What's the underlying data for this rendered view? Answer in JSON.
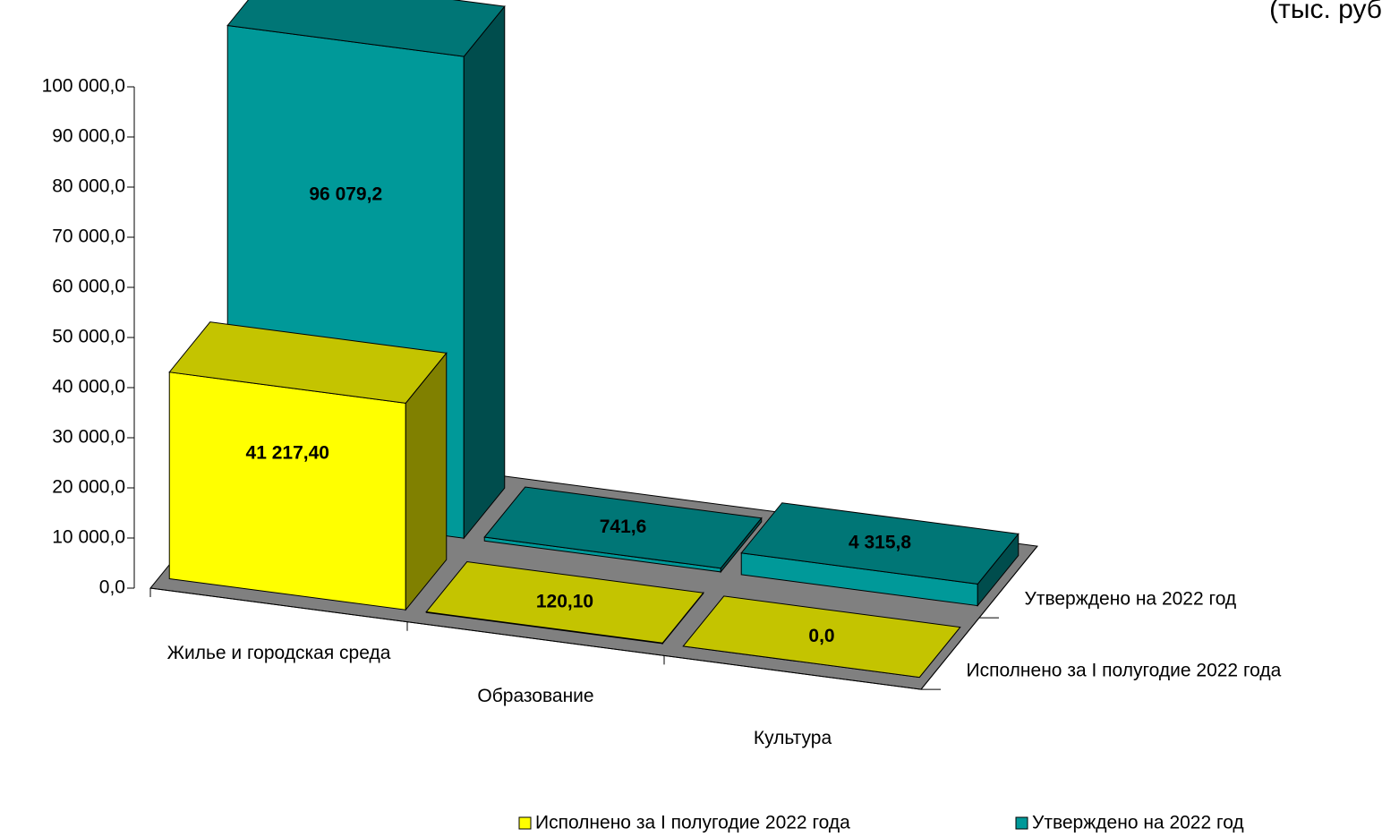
{
  "chart_data": {
    "type": "bar3d",
    "unit_label": "(тыс. руб",
    "categories": [
      "Жилье и городская среда",
      "Образование",
      "Культура"
    ],
    "series": [
      {
        "name": "Исполнено за I полугодие 2022 года",
        "color": "#ffff00",
        "values": [
          41217.4,
          120.1,
          0
        ],
        "value_labels": [
          "41 217,40",
          "120,10",
          "0,0"
        ]
      },
      {
        "name": "Утверждено на 2022 год",
        "color": "#009999",
        "values": [
          96079.2,
          741.6,
          4315.8
        ],
        "value_labels": [
          "96 079,2",
          "741,6",
          "4 315,8"
        ]
      }
    ],
    "ylim": [
      0,
      100000
    ],
    "yticks": [
      {
        "value": 0,
        "label": "0,0"
      },
      {
        "value": 10000,
        "label": "10 000,0"
      },
      {
        "value": 20000,
        "label": "20 000,0"
      },
      {
        "value": 30000,
        "label": "30 000,0"
      },
      {
        "value": 40000,
        "label": "40 000,0"
      },
      {
        "value": 50000,
        "label": "50 000,0"
      },
      {
        "value": 60000,
        "label": "60 000,0"
      },
      {
        "value": 70000,
        "label": "70 000,0"
      },
      {
        "value": 80000,
        "label": "80 000,0"
      },
      {
        "value": 90000,
        "label": "90 000,0"
      },
      {
        "value": 100000,
        "label": "100 000,0"
      }
    ],
    "legend": "bottom"
  }
}
